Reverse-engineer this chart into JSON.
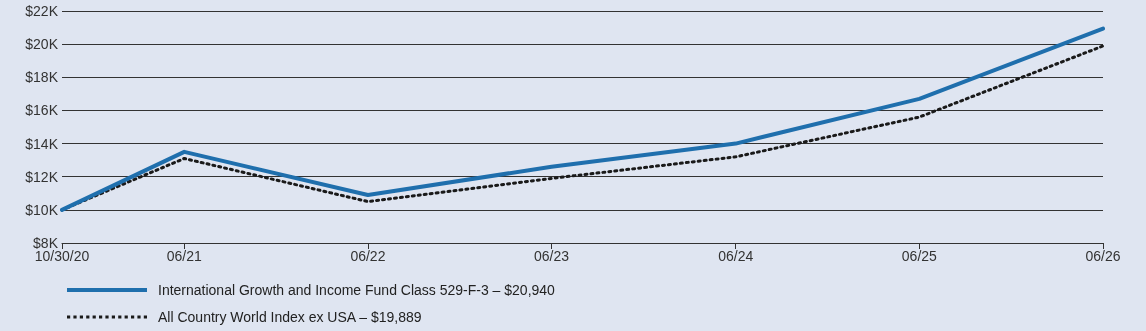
{
  "chart_data": {
    "type": "line",
    "x": [
      "2020-10-30",
      "2021-06-30",
      "2022-06-30",
      "2023-06-30",
      "2024-06-30",
      "2025-06-30",
      "2026-06-30"
    ],
    "series": [
      {
        "name": "International Growth and Income Fund Class 529-F-3 – $20,940",
        "color": "#1f6fad",
        "line_style": "solid",
        "values": [
          10000,
          13500,
          10900,
          12600,
          14000,
          16700,
          20940
        ]
      },
      {
        "name": "All Country World Index ex USA – $19,889",
        "color": "#1a1a1a",
        "line_style": "dotted",
        "values": [
          10000,
          13100,
          10500,
          11900,
          13200,
          15600,
          19889
        ]
      }
    ],
    "xlim": [
      "2020-10-30",
      "2026-06-30"
    ],
    "xticks": [
      {
        "value": "2020-10-30",
        "label": "10/30/20"
      },
      {
        "value": "2021-06-30",
        "label": "06/21"
      },
      {
        "value": "2022-06-30",
        "label": "06/22"
      },
      {
        "value": "2023-06-30",
        "label": "06/23"
      },
      {
        "value": "2024-06-30",
        "label": "06/24"
      },
      {
        "value": "2025-06-30",
        "label": "06/25"
      },
      {
        "value": "2026-06-30",
        "label": "06/26"
      }
    ],
    "ylim": [
      8000,
      22000
    ],
    "yticks": [
      {
        "value": 8000,
        "label": "$8K"
      },
      {
        "value": 10000,
        "label": "$10K"
      },
      {
        "value": 12000,
        "label": "$12K"
      },
      {
        "value": 14000,
        "label": "$14K"
      },
      {
        "value": 16000,
        "label": "$16K"
      },
      {
        "value": 18000,
        "label": "$18K"
      },
      {
        "value": 20000,
        "label": "$20K"
      },
      {
        "value": 22000,
        "label": "$22K"
      }
    ],
    "grid": "y",
    "legend": "bottom left",
    "marker": "none"
  }
}
